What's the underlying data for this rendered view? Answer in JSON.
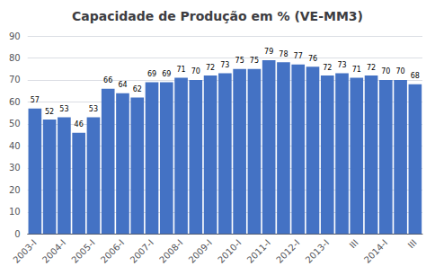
{
  "chart_data": {
    "type": "bar",
    "title": "Capacidade de Produção em % (VE-MM3)",
    "categories": [
      "2003-I",
      null,
      "2004-I",
      null,
      "2005-I",
      null,
      "2006-I",
      null,
      "2007-I",
      null,
      "2008-I",
      null,
      "2009-I",
      null,
      "2010-I",
      null,
      "2011-I",
      null,
      "2012-I",
      null,
      "2013-I",
      null,
      "III",
      null,
      "2014-I",
      null,
      "III"
    ],
    "values": [
      57,
      52,
      53,
      46,
      53,
      66,
      64,
      62,
      69,
      69,
      71,
      70,
      72,
      73,
      75,
      75,
      79,
      78,
      77,
      76,
      72,
      73,
      71,
      72,
      70,
      70,
      68
    ],
    "color": "#4472C4",
    "ylim": [
      0,
      90
    ],
    "yticks": [
      0,
      10,
      20,
      30,
      40,
      50,
      60,
      70,
      80,
      90
    ],
    "grid": true,
    "data_labels": true
  }
}
